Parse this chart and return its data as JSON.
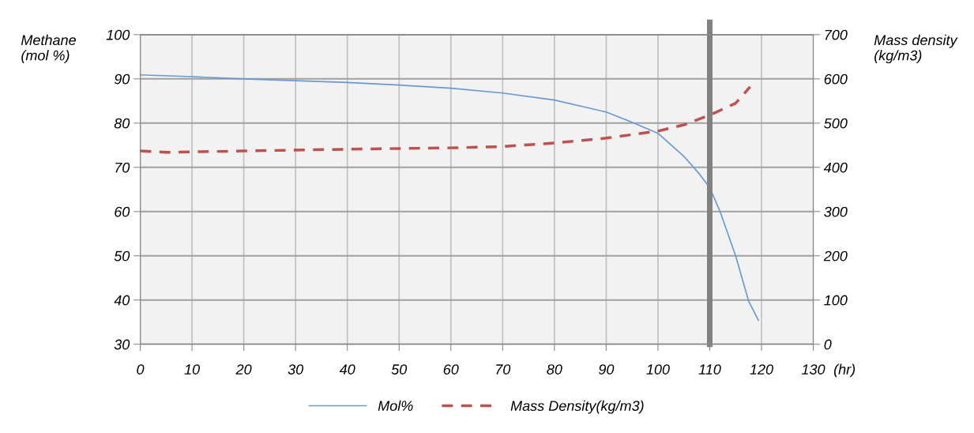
{
  "chart_data": {
    "type": "line",
    "ylabel": "Methane\n(mol %)",
    "y2label": "Mass density\n(kg/m3)",
    "xlabel": "(hr)",
    "xlim": [
      0,
      130
    ],
    "xticks": [
      0,
      10,
      20,
      30,
      40,
      50,
      60,
      70,
      80,
      90,
      100,
      110,
      120,
      130
    ],
    "ylim": [
      30,
      100
    ],
    "yticks": [
      30,
      40,
      50,
      60,
      70,
      80,
      90,
      100
    ],
    "y2lim": [
      0,
      700
    ],
    "y2ticks": [
      0,
      100,
      200,
      300,
      400,
      500,
      600,
      700
    ],
    "grid": true,
    "legend": "bottom",
    "marker": "none",
    "ref_lines": [
      {
        "axis": "x",
        "value": 110,
        "color": "#808080"
      }
    ],
    "series": [
      {
        "name": "Mol%",
        "color": "#6a98d4",
        "line_style": "solid",
        "x": [
          0,
          10,
          20,
          30,
          40,
          50,
          60,
          70,
          80,
          90,
          95,
          100,
          105,
          108,
          110,
          112,
          115,
          117.5,
          119.4
        ],
        "values": [
          90.9,
          90.5,
          90.0,
          89.6,
          89.2,
          88.6,
          87.9,
          86.8,
          85.2,
          82.5,
          80.2,
          77.7,
          72.5,
          68.5,
          65.4,
          60,
          50,
          39.8,
          35.4
        ]
      },
      {
        "name": "Mass Density(kg/m3)",
        "color": "#c0504d",
        "line_style": "dashed",
        "axis": "y2",
        "x": [
          0,
          5,
          20,
          40,
          60,
          70,
          80,
          90,
          100,
          105,
          110,
          115,
          117.8
        ],
        "values": [
          437,
          434,
          437,
          441,
          444,
          447,
          455,
          466,
          482,
          496,
          518,
          545,
          582
        ]
      }
    ]
  }
}
